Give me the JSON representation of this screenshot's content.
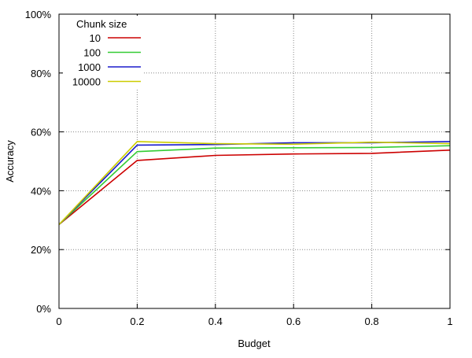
{
  "chart_data": {
    "type": "line",
    "title": "",
    "xlabel": "Budget",
    "ylabel": "Accuracy",
    "xlim": [
      0,
      1
    ],
    "ylim": [
      0,
      100
    ],
    "x_ticks": [
      "0",
      "0.2",
      "0.4",
      "0.6",
      "0.8",
      "1"
    ],
    "x_tick_values": [
      0,
      0.2,
      0.4,
      0.6,
      0.8,
      1
    ],
    "y_ticks": [
      "0%",
      "20%",
      "40%",
      "60%",
      "80%",
      "100%"
    ],
    "y_tick_values": [
      0,
      20,
      40,
      60,
      80,
      100
    ],
    "grid": true,
    "legend": {
      "title": "Chunk size",
      "placement": "top-left"
    },
    "series": [
      {
        "name": "10",
        "color": "#cc0000",
        "points": [
          [
            0,
            28.5
          ],
          [
            0.2,
            50.3
          ],
          [
            0.4,
            52.0
          ],
          [
            0.6,
            52.5
          ],
          [
            0.8,
            52.7
          ],
          [
            1,
            53.8
          ]
        ]
      },
      {
        "name": "100",
        "color": "#33cc33",
        "points": [
          [
            0,
            28.5
          ],
          [
            0.2,
            53.3
          ],
          [
            0.4,
            54.5
          ],
          [
            0.6,
            54.6
          ],
          [
            0.8,
            54.7
          ],
          [
            1,
            55.3
          ]
        ]
      },
      {
        "name": "1000",
        "color": "#1a1acc",
        "points": [
          [
            0,
            28.5
          ],
          [
            0.2,
            55.5
          ],
          [
            0.4,
            55.7
          ],
          [
            0.6,
            56.3
          ],
          [
            0.8,
            56.3
          ],
          [
            1,
            56.7
          ]
        ]
      },
      {
        "name": "10000",
        "color": "#cccc00",
        "points": [
          [
            0,
            28.5
          ],
          [
            0.2,
            56.7
          ],
          [
            0.4,
            56.0
          ],
          [
            0.6,
            55.8
          ],
          [
            0.8,
            56.5
          ],
          [
            1,
            56.0
          ]
        ]
      }
    ]
  }
}
